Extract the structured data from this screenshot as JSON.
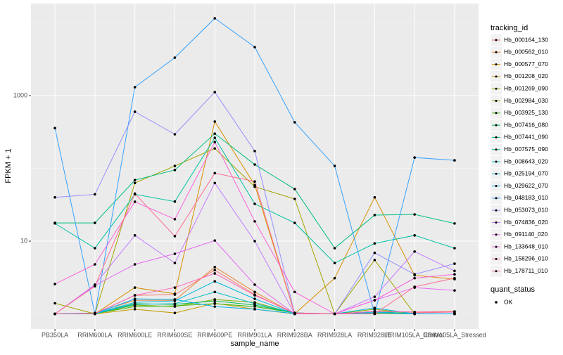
{
  "chart_data": {
    "type": "line",
    "log_y": true,
    "grid": true,
    "xlabel": "sample_name",
    "ylabel": "FPKM + 1",
    "categories": [
      "PB350LA",
      "RRIM600LA",
      "RRIM600LE",
      "RRIM600SE",
      "RRIM600PE",
      "RRIM901LA",
      "RRIM928BA",
      "RRIM928LA",
      "RRIM928LE",
      "RRIM105LA_Control",
      "RRIM105LA_Stressed"
    ],
    "ylim": [
      0.62,
      18450
    ],
    "yticks": [
      10,
      1000
    ],
    "legend_title": "tracking_id",
    "point_legend": {
      "title": "quant_status",
      "labels": [
        "OK"
      ]
    },
    "series": [
      {
        "name": "Hb_000164_130",
        "color": "#F8766D",
        "values": [
          1,
          1.01,
          1.8,
          1.84,
          4.0,
          1.84,
          1.01,
          1,
          1.01,
          1.03,
          1.06
        ]
      },
      {
        "name": "Hb_000562_010",
        "color": "#EA8331",
        "values": [
          1,
          1.03,
          1.54,
          1.54,
          4.4,
          2.0,
          1,
          1,
          1.08,
          1.06,
          1.08
        ]
      },
      {
        "name": "Hb_000577_070",
        "color": "#D89000",
        "values": [
          1,
          1,
          2.3,
          1.89,
          440,
          59,
          1,
          3.1,
          40,
          3.4,
          3.0
        ]
      },
      {
        "name": "Hb_001208_020",
        "color": "#C09B00",
        "values": [
          1,
          1,
          1.16,
          1.03,
          1.4,
          1.16,
          1,
          1,
          1.01,
          1,
          1
        ]
      },
      {
        "name": "Hb_001269_090",
        "color": "#A3A500",
        "values": [
          1.4,
          1,
          63,
          108,
          188,
          56,
          38,
          1,
          5.5,
          1,
          1
        ]
      },
      {
        "name": "Hb_002984_030",
        "color": "#7CAE00",
        "values": [
          1,
          1.01,
          1.32,
          1.26,
          1.58,
          1.44,
          1.01,
          1,
          1.16,
          1,
          1
        ]
      },
      {
        "name": "Hb_003925_130",
        "color": "#39B600",
        "values": [
          1,
          1.01,
          1.26,
          1.29,
          1.38,
          1.26,
          1.03,
          1,
          1.06,
          1,
          1
        ]
      },
      {
        "name": "Hb_007416_080",
        "color": "#00BB4E",
        "values": [
          1,
          1.01,
          1.38,
          1.35,
          1.51,
          1.32,
          1.03,
          1,
          1.08,
          1,
          1
        ]
      },
      {
        "name": "Hb_007441_090",
        "color": "#00BF7D",
        "values": [
          17.8,
          17.8,
          69,
          95,
          300,
          113,
          52,
          8,
          22.8,
          23.3,
          17.5
        ]
      },
      {
        "name": "Hb_007575_090",
        "color": "#00C1A3",
        "values": [
          17.5,
          8,
          44,
          35,
          263,
          32.5,
          17.8,
          5,
          9.3,
          12,
          8
        ]
      },
      {
        "name": "Hb_008643_020",
        "color": "#00BFC4",
        "values": [
          1,
          1.01,
          1.35,
          1.38,
          2.0,
          1.38,
          1.03,
          1,
          1.03,
          1,
          1
        ]
      },
      {
        "name": "Hb_025194_070",
        "color": "#00BAE0",
        "values": [
          1,
          1.01,
          1.44,
          1.51,
          2.8,
          1.61,
          1.01,
          1,
          1.21,
          1,
          1
        ]
      },
      {
        "name": "Hb_029622_070",
        "color": "#00B0F6",
        "values": [
          1,
          1.01,
          1.61,
          1.58,
          1.26,
          1.16,
          1.01,
          1,
          1.06,
          1,
          1
        ]
      },
      {
        "name": "Hb_048183_010",
        "color": "#35A2FF",
        "values": [
          358,
          1,
          1306,
          3327,
          11560,
          4645,
          430,
          108,
          1,
          141,
          129
        ]
      },
      {
        "name": "Hb_053073_010",
        "color": "#9590FF",
        "values": [
          40,
          44,
          600,
          294,
          1117,
          173,
          1,
          1,
          6.9,
          3.5,
          4.9
        ]
      },
      {
        "name": "Hb_074836_020",
        "color": "#C77CFF",
        "values": [
          1,
          2.52,
          12,
          5,
          63,
          10,
          1,
          1,
          1.72,
          7.2,
          3.9
        ]
      },
      {
        "name": "Hb_091140_020",
        "color": "#E76BF3",
        "values": [
          1,
          2.46,
          4.8,
          6.7,
          10.2,
          2.52,
          1,
          1,
          1.54,
          2.3,
          2.1
        ]
      },
      {
        "name": "Hb_133648_010",
        "color": "#FA62DB",
        "values": [
          2.57,
          4.8,
          34.8,
          20,
          230,
          18.7,
          2.0,
          1,
          1.54,
          3.1,
          3.5
        ]
      },
      {
        "name": "Hb_158296_010",
        "color": "#FF62BC",
        "values": [
          1,
          1.01,
          1.8,
          2.3,
          3.6,
          1.8,
          1.03,
          1,
          1.08,
          1.06,
          1.06
        ]
      },
      {
        "name": "Hb_178711_010",
        "color": "#FF6C91",
        "values": [
          1,
          2.4,
          45,
          11.7,
          86,
          66,
          1.01,
          1,
          1,
          2.36,
          3.1
        ]
      }
    ]
  }
}
